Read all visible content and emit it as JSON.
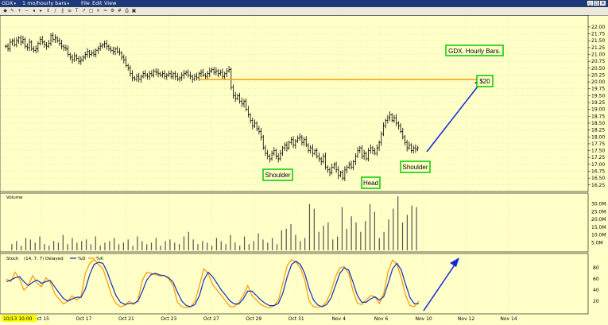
{
  "window": {
    "symbol": "GDX",
    "bar_setting": "1 mo/hourly bars",
    "menu": [
      "File",
      "Edit",
      "View"
    ]
  },
  "toolbar_icons": [
    "symbol-icon",
    "draw-icon",
    "zoom-in-icon",
    "zoom-out-icon",
    "pan-left-icon",
    "pan-right-icon",
    "measure-icon",
    "line-icon",
    "channel-icon",
    "fib-icon",
    "text-icon",
    "arrow-icon",
    "shape-icon",
    "cross-icon",
    "compare-icon",
    "settings-icon",
    "grid-icon",
    "print-icon",
    "save-icon"
  ],
  "colors": {
    "background": "#ffffc8",
    "price": "#000000",
    "resistance": "#ff9900",
    "arrow": "#0000ff",
    "label_border": "#00cc00",
    "stoch_k": "#ff9900",
    "stoch_d": "#0000ff"
  },
  "annotations": {
    "title": "GDX. Hourly Bars.",
    "level": "$20",
    "left_shoulder": "Shoulder",
    "head": "Head",
    "right_shoulder": "Shoulder"
  },
  "date_labels": [
    "Oct 15",
    "Oct 17",
    "Oct 21",
    "Oct 23",
    "Oct 27",
    "Oct 29",
    "Oct 31",
    "Nov 4",
    "Nov 6",
    "Nov 10",
    "Nov 12",
    "Nov 14"
  ],
  "cursor_label": "10/13 10:00",
  "chart_data": [
    {
      "type": "ohlc",
      "ylabel": "",
      "ylim": [
        16.1,
        22.2
      ],
      "tick_labels": [
        "22.00",
        "21.75",
        "21.50",
        "21.25",
        "21.00",
        "20.75",
        "20.50",
        "20.25",
        "20.00",
        "19.75",
        "19.50",
        "19.25",
        "19.00",
        "18.75",
        "18.50",
        "18.25",
        "18.00",
        "17.75",
        "17.50",
        "17.25",
        "17.00",
        "16.75",
        "16.50",
        "16.25"
      ],
      "resistance": 20.0,
      "closes_hourly": [
        21.3,
        21.2,
        21.45,
        21.5,
        21.35,
        21.5,
        21.6,
        21.45,
        21.55,
        21.3,
        21.25,
        21.45,
        21.2,
        21.15,
        21.2,
        21.4,
        21.55,
        21.45,
        21.35,
        21.3,
        21.4,
        21.7,
        21.55,
        21.6,
        21.5,
        21.4,
        21.3,
        21.25,
        21.2,
        21.0,
        20.9,
        20.8,
        20.95,
        20.85,
        20.75,
        20.8,
        20.9,
        21.0,
        21.1,
        21.0,
        21.05,
        21.0,
        21.15,
        21.2,
        21.3,
        21.35,
        21.4,
        21.3,
        21.2,
        21.15,
        21.1,
        21.2,
        21.1,
        21.05,
        20.9,
        20.8,
        20.6,
        20.5,
        20.3,
        20.15,
        20.1,
        20.2,
        20.1,
        20.2,
        20.3,
        20.25,
        20.2,
        20.3,
        20.25,
        20.4,
        20.35,
        20.3,
        20.25,
        20.3,
        20.2,
        20.25,
        20.3,
        20.2,
        20.3,
        20.2,
        20.1,
        20.15,
        20.25,
        20.3,
        20.35,
        20.25,
        20.2,
        20.1,
        20.2,
        20.15,
        20.3,
        20.35,
        20.25,
        20.2,
        20.3,
        20.4,
        20.45,
        20.35,
        20.4,
        20.3,
        20.35,
        20.2,
        20.3,
        20.4,
        20.45,
        19.8,
        19.5,
        19.4,
        19.5,
        19.3,
        19.2,
        19.3,
        19.0,
        18.8,
        18.6,
        18.4,
        18.5,
        18.3,
        18.2,
        18.0,
        17.6,
        17.4,
        17.3,
        17.2,
        17.4,
        17.5,
        17.3,
        17.2,
        17.4,
        17.6,
        17.7,
        17.6,
        17.8,
        17.9,
        17.7,
        17.85,
        17.95,
        18.0,
        17.8,
        17.9,
        17.7,
        17.5,
        17.6,
        17.4,
        17.5,
        17.3,
        17.2,
        17.1,
        17.3,
        16.9,
        16.8,
        16.7,
        16.9,
        17.0,
        16.8,
        16.6,
        16.7,
        16.5,
        16.8,
        16.9,
        17.0,
        16.9,
        17.1,
        17.3,
        17.5,
        17.6,
        17.3,
        17.4,
        17.2,
        17.5,
        17.6,
        17.5,
        17.4,
        17.6,
        17.8,
        18.1,
        18.4,
        18.6,
        18.7,
        18.8,
        18.6,
        18.7,
        18.5,
        18.4,
        18.2,
        18.0,
        17.8,
        17.6,
        17.7,
        17.5,
        17.6,
        17.55,
        17.6
      ]
    },
    {
      "type": "bar",
      "title": "Volume",
      "ylim": [
        0,
        35
      ],
      "tick_labels": [
        "30.0M",
        "25.0M",
        "20.0M",
        "15.0M",
        "10.0M",
        "5.0M"
      ],
      "values_million": [
        4,
        6,
        3,
        8,
        7,
        5,
        9,
        4,
        3,
        6,
        5,
        10,
        4,
        8,
        5,
        6,
        7,
        4,
        9,
        3,
        5,
        6,
        8,
        4,
        5,
        7,
        3,
        9,
        6,
        4,
        5,
        8,
        3,
        6,
        7,
        5,
        4,
        9,
        12,
        7,
        4,
        6,
        5,
        3,
        8,
        6,
        4,
        10,
        5,
        3,
        9,
        4,
        6,
        11,
        7,
        5,
        8,
        4,
        13,
        14,
        17,
        10,
        6,
        8,
        30,
        27,
        12,
        16,
        18,
        7,
        9,
        28,
        14,
        22,
        18,
        12,
        19,
        30,
        25,
        8,
        12,
        20,
        27,
        35,
        18,
        23,
        29,
        28
      ]
    },
    {
      "type": "line",
      "title": "Stoch",
      "settings": "(14, 7, 7) Delayed",
      "series_names": [
        "%K",
        "%D"
      ],
      "ylim": [
        0,
        100
      ],
      "tick_labels": [
        "80",
        "60",
        "40",
        "20"
      ],
      "k": [
        60,
        55,
        72,
        60,
        40,
        48,
        66,
        52,
        46,
        62,
        55,
        34,
        24,
        15,
        20,
        30,
        22,
        28,
        70,
        88,
        95,
        86,
        78,
        55,
        30,
        16,
        10,
        12,
        20,
        14,
        22,
        58,
        72,
        70,
        68,
        65,
        66,
        60,
        48,
        18,
        10,
        8,
        10,
        20,
        48,
        78,
        70,
        50,
        40,
        30,
        20,
        10,
        10,
        18,
        30,
        48,
        30,
        22,
        14,
        10,
        8,
        12,
        22,
        52,
        84,
        95,
        90,
        80,
        58,
        20,
        10,
        9,
        11,
        20,
        38,
        64,
        80,
        82,
        70,
        38,
        16,
        14,
        22,
        30,
        28,
        16,
        34,
        74,
        94,
        86,
        62,
        30,
        12,
        10,
        20
      ],
      "d": [
        55,
        58,
        62,
        64,
        55,
        48,
        54,
        58,
        52,
        55,
        57,
        46,
        35,
        25,
        20,
        24,
        27,
        27,
        42,
        68,
        86,
        90,
        88,
        72,
        50,
        30,
        18,
        14,
        16,
        16,
        20,
        38,
        58,
        68,
        70,
        67,
        66,
        62,
        54,
        36,
        20,
        12,
        10,
        14,
        30,
        58,
        72,
        64,
        52,
        40,
        30,
        20,
        15,
        15,
        24,
        38,
        38,
        30,
        22,
        16,
        12,
        12,
        16,
        34,
        64,
        86,
        92,
        86,
        70,
        42,
        22,
        13,
        10,
        14,
        26,
        48,
        70,
        80,
        76,
        54,
        30,
        18,
        18,
        24,
        28,
        22,
        28,
        52,
        78,
        88,
        76,
        50,
        26,
        15,
        16
      ]
    }
  ]
}
